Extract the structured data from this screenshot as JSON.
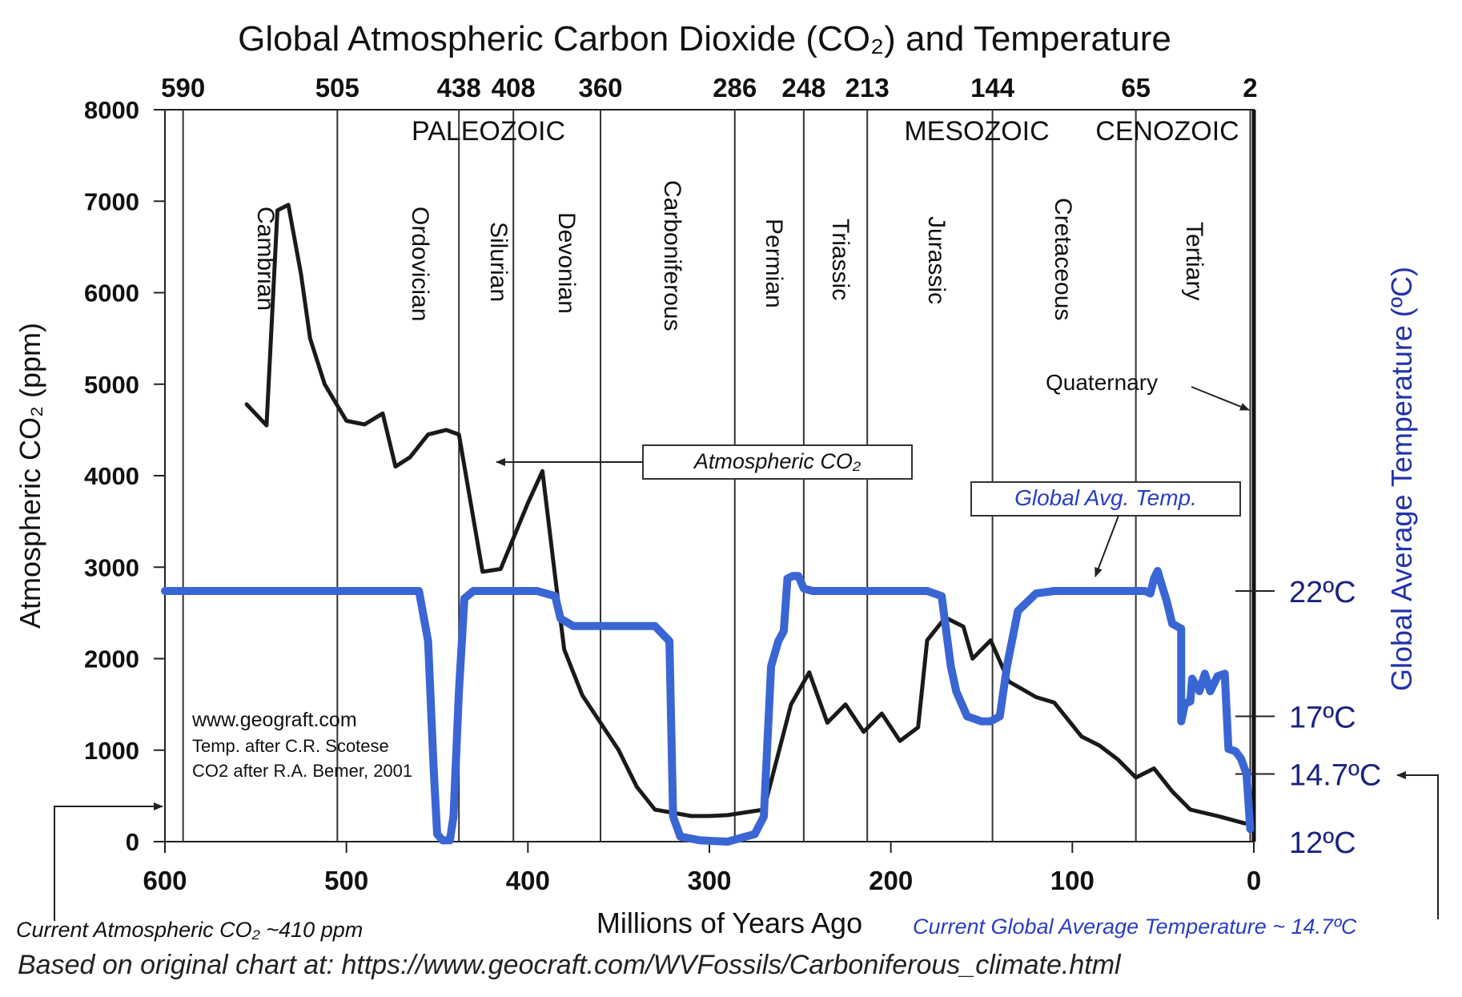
{
  "chart_data": {
    "type": "line",
    "title": "Global Atmospheric Carbon Dioxide (CO₂) and Temperature",
    "xlabel": "Millions of Years Ago",
    "ylabel": "Atmospheric CO₂ (ppm)",
    "ylabel_right": "Global Average Temperature (ºC)",
    "xlim": [
      600,
      0
    ],
    "ylim": [
      0,
      8000
    ],
    "x_ticks": [
      "600",
      "500",
      "400",
      "300",
      "200",
      "100",
      "0"
    ],
    "y_ticks": [
      "0",
      "1000",
      "2000",
      "3000",
      "4000",
      "5000",
      "6000",
      "7000",
      "8000"
    ],
    "top_ticks": [
      "590",
      "505",
      "438",
      "408",
      "360",
      "286",
      "248",
      "213",
      "144",
      "65",
      "2"
    ],
    "boundaries": [
      590,
      505,
      438,
      408,
      360,
      286,
      248,
      213,
      144,
      65,
      2
    ],
    "eras": [
      "PALEOZOIC",
      "MESOZOIC",
      "CENOZOIC"
    ],
    "periods": [
      "Cambrian",
      "Ordovician",
      "Silurian",
      "Devonian",
      "Carboniferous",
      "Permian",
      "Triassic",
      "Jurassic",
      "Cretaceous",
      "Tertiary"
    ],
    "quaternary_label": "Quaternary",
    "temp_ticks": [
      {
        "label": "22ºC",
        "value": 22
      },
      {
        "label": "17ºC",
        "value": 17
      },
      {
        "label": "14.7ºC",
        "value": 14.7
      },
      {
        "label": "12ºC",
        "value": 12
      }
    ],
    "series": [
      {
        "name": "Atmospheric CO₂",
        "axis": "left",
        "color": "#1a1a1a",
        "points": [
          [
            555,
            4780
          ],
          [
            544,
            4550
          ],
          [
            538,
            6900
          ],
          [
            532,
            6960
          ],
          [
            525,
            6200
          ],
          [
            520,
            5500
          ],
          [
            512,
            5000
          ],
          [
            500,
            4600
          ],
          [
            490,
            4560
          ],
          [
            480,
            4680
          ],
          [
            473,
            4100
          ],
          [
            465,
            4200
          ],
          [
            455,
            4450
          ],
          [
            445,
            4500
          ],
          [
            438,
            4450
          ],
          [
            425,
            2950
          ],
          [
            415,
            2980
          ],
          [
            400,
            3700
          ],
          [
            392,
            4050
          ],
          [
            385,
            2900
          ],
          [
            380,
            2100
          ],
          [
            370,
            1600
          ],
          [
            350,
            1000
          ],
          [
            340,
            600
          ],
          [
            330,
            350
          ],
          [
            310,
            280
          ],
          [
            300,
            280
          ],
          [
            290,
            290
          ],
          [
            270,
            350
          ],
          [
            255,
            1500
          ],
          [
            245,
            1850
          ],
          [
            235,
            1300
          ],
          [
            225,
            1500
          ],
          [
            215,
            1200
          ],
          [
            205,
            1400
          ],
          [
            195,
            1100
          ],
          [
            185,
            1250
          ],
          [
            180,
            2200
          ],
          [
            170,
            2450
          ],
          [
            160,
            2350
          ],
          [
            155,
            2000
          ],
          [
            145,
            2200
          ],
          [
            135,
            1750
          ],
          [
            120,
            1580
          ],
          [
            110,
            1520
          ],
          [
            95,
            1150
          ],
          [
            85,
            1050
          ],
          [
            75,
            900
          ],
          [
            65,
            700
          ],
          [
            55,
            800
          ],
          [
            45,
            550
          ],
          [
            35,
            350
          ],
          [
            20,
            280
          ],
          [
            5,
            200
          ]
        ]
      },
      {
        "name": "Global Avg. Temp.",
        "axis": "right",
        "color": "#3a66d4",
        "points": [
          [
            600,
            22
          ],
          [
            460,
            22
          ],
          [
            455,
            20
          ],
          [
            452,
            15
          ],
          [
            450,
            12.3
          ],
          [
            447,
            12.05
          ],
          [
            443,
            12.05
          ],
          [
            441,
            13
          ],
          [
            438,
            18
          ],
          [
            435,
            21.7
          ],
          [
            430,
            22
          ],
          [
            395,
            22
          ],
          [
            385,
            21.8
          ],
          [
            382,
            20.9
          ],
          [
            375,
            20.6
          ],
          [
            330,
            20.6
          ],
          [
            322,
            20
          ],
          [
            320,
            13
          ],
          [
            316,
            12.2
          ],
          [
            305,
            12.05
          ],
          [
            290,
            12
          ],
          [
            275,
            12.3
          ],
          [
            270,
            13
          ],
          [
            266,
            19
          ],
          [
            262,
            20
          ],
          [
            259,
            20.4
          ],
          [
            257,
            22.5
          ],
          [
            254,
            22.6
          ],
          [
            251,
            22.6
          ],
          [
            248,
            22.1
          ],
          [
            243,
            22
          ],
          [
            180,
            22
          ],
          [
            172,
            21.8
          ],
          [
            167,
            19
          ],
          [
            164,
            18
          ],
          [
            158,
            17
          ],
          [
            150,
            16.8
          ],
          [
            145,
            16.8
          ],
          [
            140,
            17
          ],
          [
            136,
            19
          ],
          [
            130,
            21.2
          ],
          [
            120,
            21.9
          ],
          [
            110,
            22
          ],
          [
            60,
            22
          ],
          [
            57,
            21.9
          ],
          [
            55,
            22.5
          ],
          [
            53,
            22.8
          ],
          [
            51,
            22.3
          ],
          [
            48,
            21.6
          ],
          [
            45,
            20.7
          ],
          [
            40,
            20.5
          ],
          [
            40,
            16.8
          ],
          [
            38,
            17.5
          ],
          [
            35,
            17.6
          ],
          [
            34,
            18.5
          ],
          [
            30,
            18
          ],
          [
            27,
            18.7
          ],
          [
            24,
            18
          ],
          [
            20,
            18.6
          ],
          [
            16,
            18.7
          ],
          [
            14,
            15.7
          ],
          [
            10,
            15.6
          ],
          [
            7,
            15.3
          ],
          [
            4,
            14.7
          ],
          [
            2,
            12.5
          ]
        ]
      }
    ],
    "callouts": {
      "co2": "Atmospheric CO₂",
      "temp": "Global Avg. Temp."
    },
    "credits": [
      "www.geograft.com",
      "Temp. after C.R. Scotese",
      "CO2 after R.A. Bemer, 2001"
    ],
    "notes": {
      "current_co2": "Current Atmospheric CO₂ ~410 ppm",
      "current_temp": "Current Global Average Temperature ~ 14.7ºC",
      "source": "Based on original chart at:  https://www.geocraft.com/WVFossils/Carboniferous_climate.html"
    },
    "legend": "none",
    "grid": false
  }
}
